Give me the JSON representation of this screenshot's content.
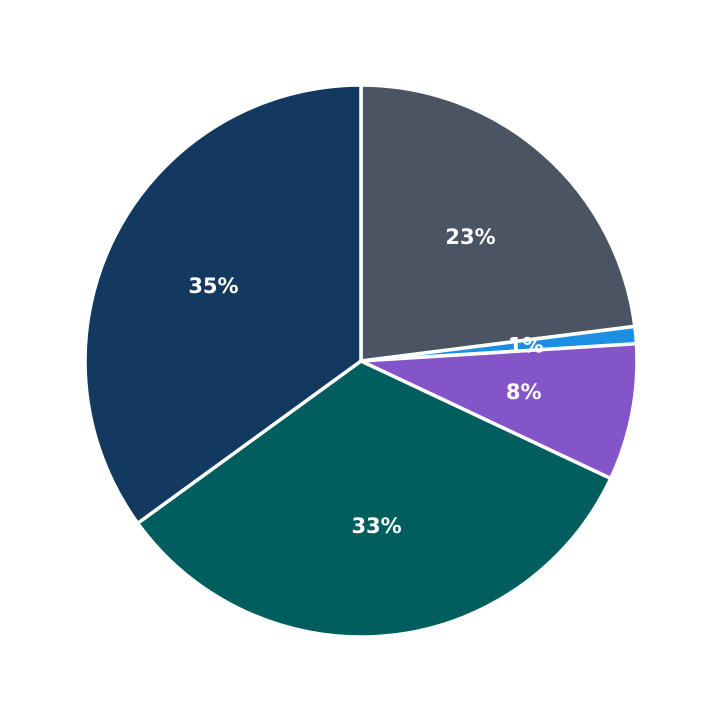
{
  "chart_data": {
    "type": "pie",
    "start_angle": "12 o'clock",
    "direction": "clockwise",
    "slices": [
      {
        "label": "23%",
        "value": 23,
        "color": "#4a5462"
      },
      {
        "label": "1%",
        "value": 1,
        "color": "#1a8fe3"
      },
      {
        "label": "8%",
        "value": 8,
        "color": "#8455c8"
      },
      {
        "label": "33%",
        "value": 33,
        "color": "#005f5e"
      },
      {
        "label": "35%",
        "value": 35,
        "color": "#143961"
      }
    ]
  }
}
